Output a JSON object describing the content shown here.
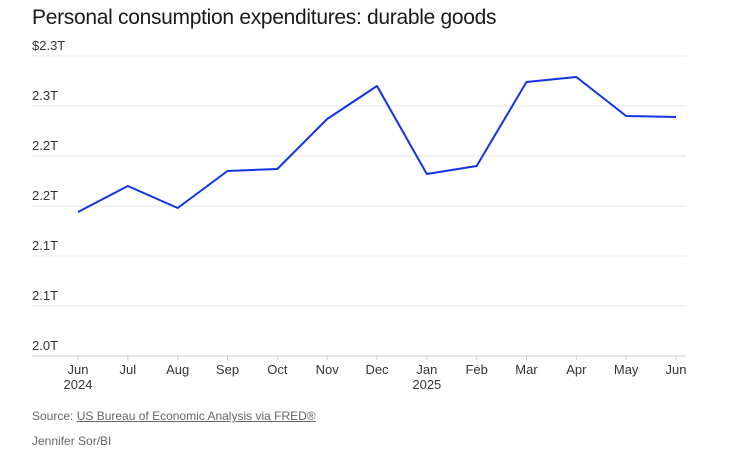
{
  "chart_data": {
    "type": "line",
    "title": "Personal consumption expenditures: durable goods",
    "xlabel": "",
    "ylabel": "",
    "y_tick_labels": [
      "$2.3T",
      "2.3T",
      "2.2T",
      "2.2T",
      "2.1T",
      "2.1T",
      "2.0T"
    ],
    "y_tick_values": [
      2.3,
      2.25,
      2.2,
      2.15,
      2.1,
      2.05,
      2.0
    ],
    "ylim": [
      2.0,
      2.3
    ],
    "grid": true,
    "categories": [
      {
        "month": "Jun",
        "year": "2024"
      },
      {
        "month": "Jul",
        "year": ""
      },
      {
        "month": "Aug",
        "year": ""
      },
      {
        "month": "Sep",
        "year": ""
      },
      {
        "month": "Oct",
        "year": ""
      },
      {
        "month": "Nov",
        "year": ""
      },
      {
        "month": "Dec",
        "year": ""
      },
      {
        "month": "Jan",
        "year": "2025"
      },
      {
        "month": "Feb",
        "year": ""
      },
      {
        "month": "Mar",
        "year": ""
      },
      {
        "month": "Apr",
        "year": ""
      },
      {
        "month": "May",
        "year": ""
      },
      {
        "month": "Jun",
        "year": ""
      }
    ],
    "series": [
      {
        "color": "#1133e6",
        "values": [
          2.144,
          2.17,
          2.148,
          2.185,
          2.187,
          2.237,
          2.27,
          2.182,
          2.19,
          2.274,
          2.279,
          2.24,
          2.239
        ]
      }
    ]
  },
  "footer": {
    "source_prefix": "Source: ",
    "source_link": "US Bureau of Economic Analysis via FRED®",
    "credit": "Jennifer Sor/BI"
  }
}
